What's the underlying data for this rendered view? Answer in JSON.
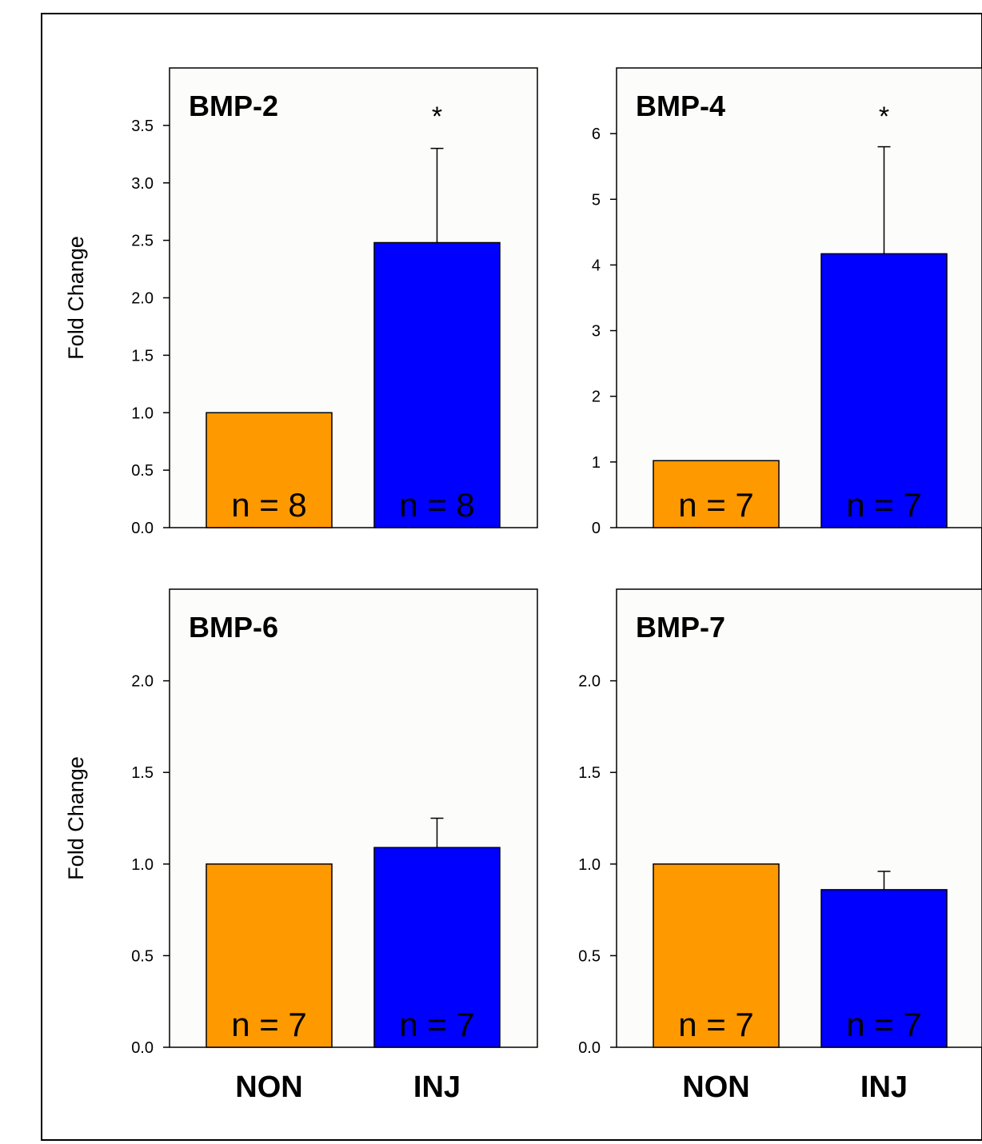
{
  "colors": {
    "NON": "#ff9900",
    "INJ": "#0000ff",
    "bar_stroke": "#000000",
    "panel_bg": "#fcfcfa"
  },
  "chart_data": [
    {
      "type": "bar",
      "title": "BMP-2",
      "ylabel": "Fold Change",
      "categories": [
        "NON",
        "INJ"
      ],
      "values": [
        1.0,
        2.48
      ],
      "error": [
        null,
        0.82
      ],
      "n_labels": [
        "n = 8",
        "n = 8"
      ],
      "significance": [
        null,
        "*"
      ],
      "ylim": [
        0,
        4.0
      ],
      "yticks": [
        "0.0",
        "0.5",
        "1.0",
        "1.5",
        "2.0",
        "2.5",
        "3.0",
        "3.5"
      ],
      "show_xlabels": false
    },
    {
      "type": "bar",
      "title": "BMP-4",
      "ylabel": "",
      "categories": [
        "NON",
        "INJ"
      ],
      "values": [
        1.02,
        4.17
      ],
      "error": [
        null,
        1.63
      ],
      "n_labels": [
        "n = 7",
        "n = 7"
      ],
      "significance": [
        null,
        "*"
      ],
      "ylim": [
        0,
        7.0
      ],
      "yticks": [
        "0",
        "1",
        "2",
        "3",
        "4",
        "5",
        "6"
      ],
      "show_xlabels": false
    },
    {
      "type": "bar",
      "title": "BMP-6",
      "ylabel": "Fold Change",
      "categories": [
        "NON",
        "INJ"
      ],
      "values": [
        1.0,
        1.09
      ],
      "error": [
        null,
        0.16
      ],
      "n_labels": [
        "n = 7",
        "n = 7"
      ],
      "significance": [
        null,
        null
      ],
      "ylim": [
        0,
        2.5
      ],
      "yticks": [
        "0.0",
        "0.5",
        "1.0",
        "1.5",
        "2.0"
      ],
      "show_xlabels": true
    },
    {
      "type": "bar",
      "title": "BMP-7",
      "ylabel": "",
      "categories": [
        "NON",
        "INJ"
      ],
      "values": [
        1.0,
        0.86
      ],
      "error": [
        null,
        0.1
      ],
      "n_labels": [
        "n = 7",
        "n = 7"
      ],
      "significance": [
        null,
        null
      ],
      "ylim": [
        0,
        2.5
      ],
      "yticks": [
        "0.0",
        "0.5",
        "1.0",
        "1.5",
        "2.0"
      ],
      "show_xlabels": true
    }
  ]
}
